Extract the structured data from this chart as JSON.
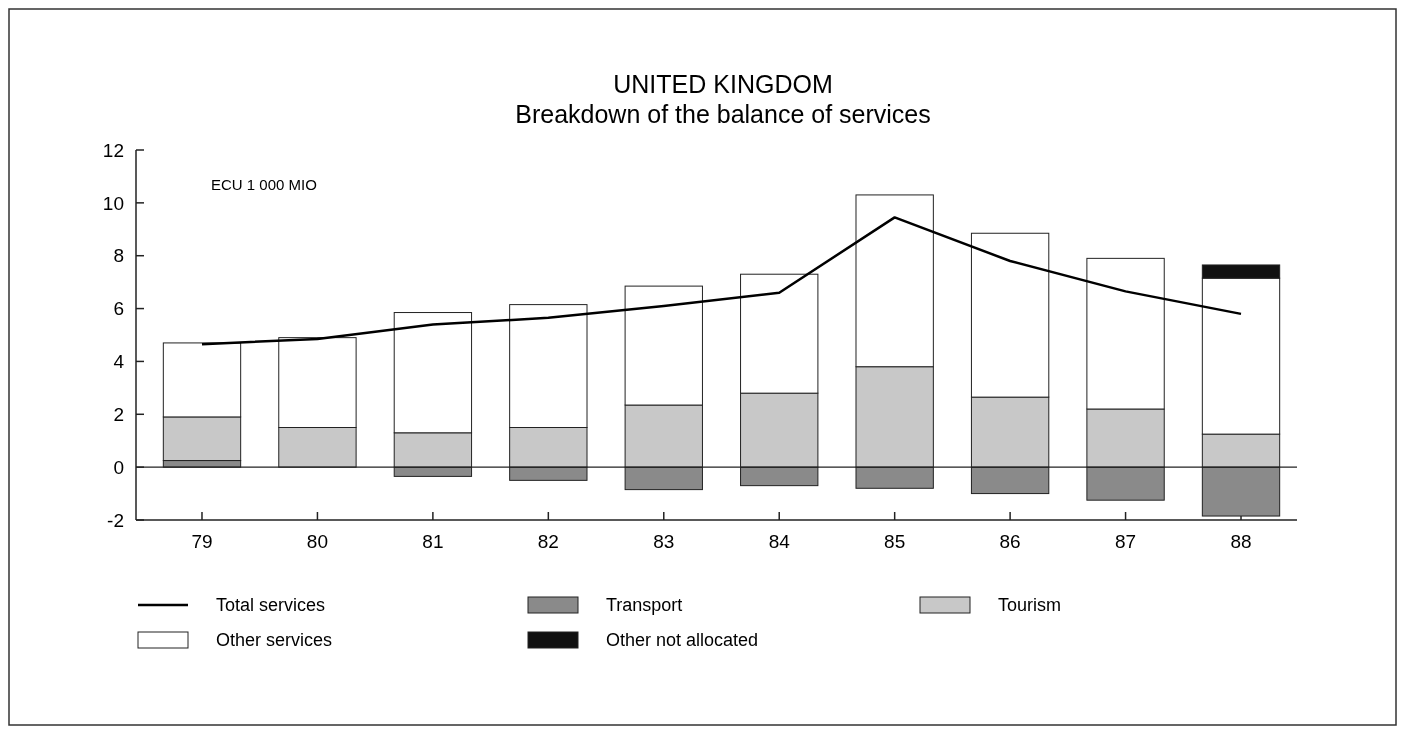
{
  "chart_data": {
    "type": "bar",
    "title": "UNITED KINGDOM",
    "subtitle": "Breakdown of the balance of services",
    "ylabel": "ECU 1 000 MIO",
    "categories": [
      "79",
      "80",
      "81",
      "82",
      "83",
      "84",
      "85",
      "86",
      "87",
      "88"
    ],
    "stacked": true,
    "series": [
      {
        "name": "Total services",
        "type": "line",
        "color": "#000000",
        "values": [
          4.65,
          4.85,
          5.4,
          5.65,
          6.1,
          6.6,
          9.45,
          7.8,
          6.65,
          5.8
        ]
      },
      {
        "name": "Transport",
        "color": "#8a8a8a",
        "values": [
          0.25,
          0,
          -0.35,
          -0.5,
          -0.85,
          -0.7,
          -0.8,
          -1.0,
          -1.25,
          -1.85
        ]
      },
      {
        "name": "Tourism",
        "color": "#c8c8c8",
        "values": [
          1.65,
          1.5,
          1.3,
          1.5,
          2.35,
          2.8,
          3.8,
          2.65,
          2.2,
          1.25
        ]
      },
      {
        "name": "Other services",
        "color": "#ffffff",
        "values": [
          2.8,
          3.4,
          4.55,
          4.65,
          4.5,
          4.5,
          6.5,
          6.2,
          5.7,
          5.9
        ]
      },
      {
        "name": "Other not allocated",
        "color": "#111111",
        "values": [
          null,
          null,
          null,
          null,
          null,
          null,
          null,
          null,
          null,
          0.5
        ]
      }
    ],
    "ylim": [
      -2,
      12
    ],
    "yticks": [
      -2,
      0,
      2,
      4,
      6,
      8,
      10,
      12
    ],
    "ref_lines": [
      {
        "axis": "y",
        "value": 0
      }
    ],
    "grid": false,
    "legend": "bottom"
  }
}
